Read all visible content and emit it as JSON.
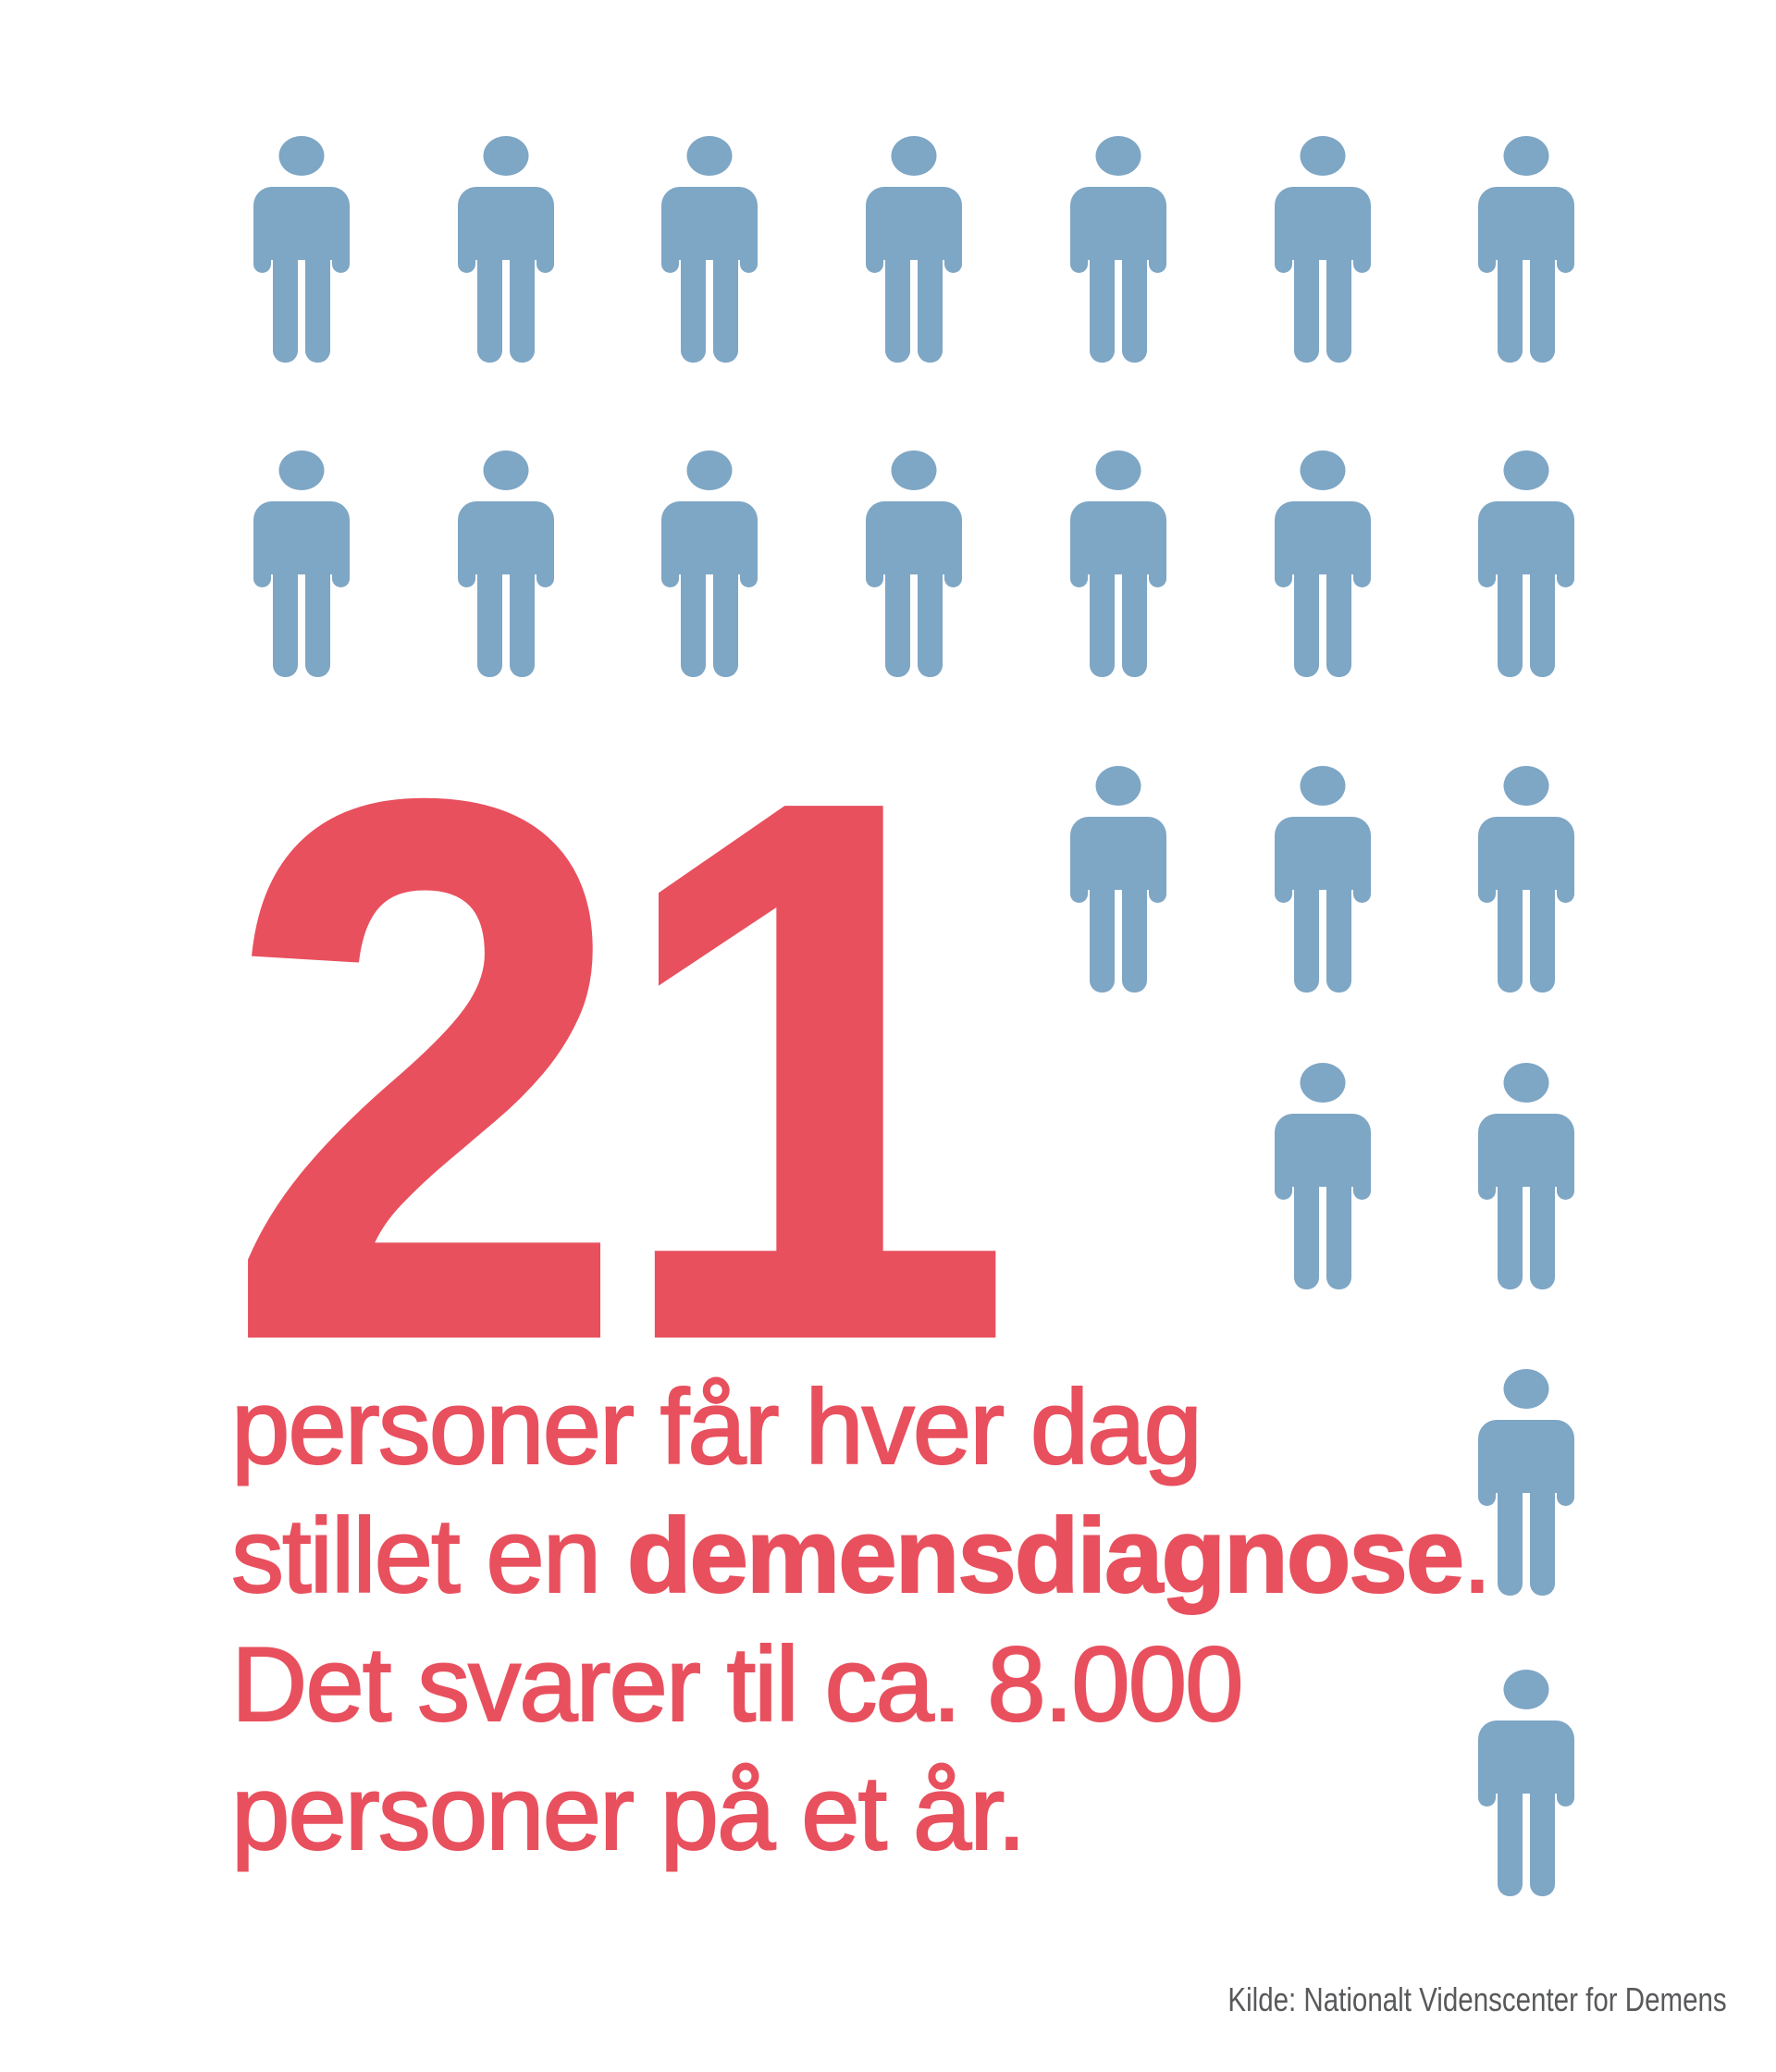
{
  "infographic": {
    "big_number": "21",
    "description": {
      "line1": "personer får hver dag",
      "line2_pre": "stillet en ",
      "line2_bold": "demensdiagnose",
      "line2_post": ".",
      "line3": "Det svarer til ca. 8.000",
      "line4": "personer på et år."
    },
    "source": "Kilde: Nationalt Videnscenter for Demens"
  },
  "colors": {
    "person_blue": "#7ea6c5",
    "accent_red": "#e8505e",
    "source_gray": "#58595b",
    "background": "#ffffff"
  },
  "chart_data": {
    "type": "pictograph",
    "title": "21 personer får hver dag stillet en demensdiagnose. Det svarer til ca. 8.000 personer på et år.",
    "value": 21,
    "unit": "personer per dag",
    "annual_equivalent": 8000,
    "icon": "person",
    "icon_meaning": "1 person der får stillet en demensdiagnose per dag",
    "icon_count": 21,
    "grid_columns": 7,
    "rows": [
      {
        "row": 1,
        "columns": [
          1,
          2,
          3,
          4,
          5,
          6,
          7
        ]
      },
      {
        "row": 2,
        "columns": [
          1,
          2,
          3,
          4,
          5,
          6,
          7
        ]
      },
      {
        "row": 3,
        "columns": [
          5,
          6,
          7
        ]
      },
      {
        "row": 4,
        "columns": [
          6,
          7
        ]
      },
      {
        "row": 5,
        "columns": [
          7
        ]
      },
      {
        "row": 6,
        "columns": [
          7
        ]
      }
    ],
    "legend_position": "none",
    "grid": false,
    "source": "Kilde: Nationalt Videnscenter for Demens"
  }
}
